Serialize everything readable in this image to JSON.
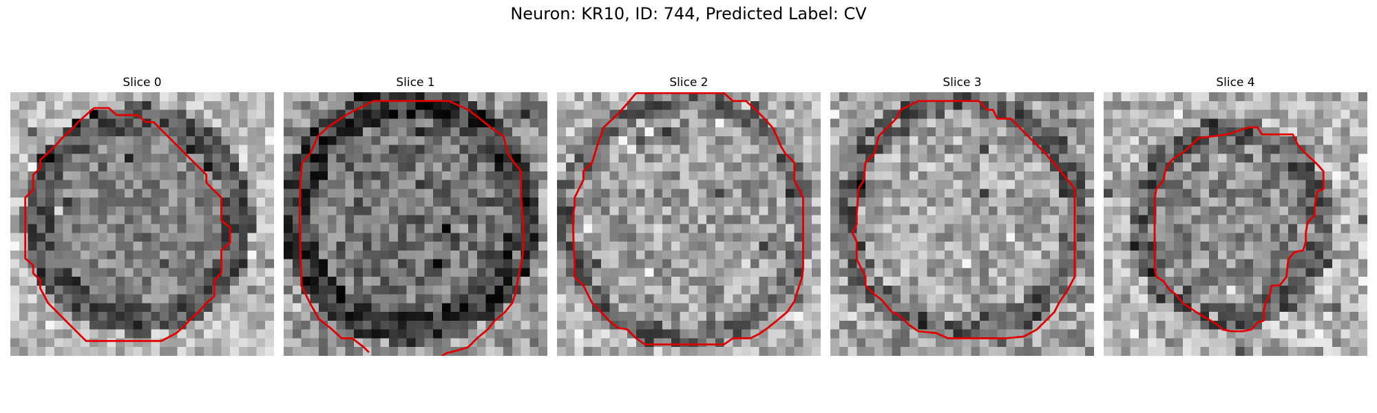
{
  "figure": {
    "title": "Neuron: KR10, ID: 744, Predicted Label: CV",
    "contour_color": "#e00000",
    "panels": [
      {
        "title": "Slice 0"
      },
      {
        "title": "Slice 1"
      },
      {
        "title": "Slice 2"
      },
      {
        "title": "Slice 3"
      },
      {
        "title": "Slice 4"
      }
    ]
  }
}
